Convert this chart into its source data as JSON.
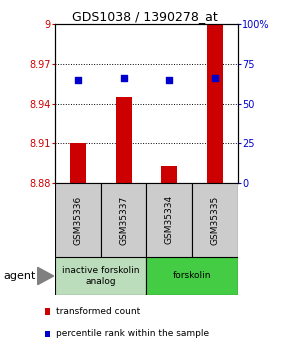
{
  "title": "GDS1038 / 1390278_at",
  "samples": [
    "GSM35336",
    "GSM35337",
    "GSM35334",
    "GSM35335"
  ],
  "bar_values": [
    8.91,
    8.945,
    8.893,
    9.0
  ],
  "bar_base": 8.88,
  "percentile_values": [
    65,
    66,
    65,
    66
  ],
  "percentile_scale_min": 0,
  "percentile_scale_max": 100,
  "y_min": 8.88,
  "y_max": 9.0,
  "y_ticks": [
    8.88,
    8.91,
    8.94,
    8.97,
    9.0
  ],
  "y_tick_labels": [
    "8.88",
    "8.91",
    "8.94",
    "8.97",
    "9"
  ],
  "right_y_ticks": [
    0,
    25,
    50,
    75,
    100
  ],
  "right_y_tick_labels": [
    "0",
    "25",
    "50",
    "75",
    "100%"
  ],
  "bar_color": "#cc0000",
  "dot_color": "#0000cc",
  "grid_color": "#000000",
  "bg_color": "#ffffff",
  "plot_bg": "#ffffff",
  "inactive_color": "#bbddbb",
  "active_color": "#44cc44",
  "sample_bg": "#cccccc",
  "groups": [
    {
      "label": "inactive forskolin\nanalog",
      "samples": [
        0,
        1
      ],
      "color": "#bbddbb"
    },
    {
      "label": "forskolin",
      "samples": [
        2,
        3
      ],
      "color": "#44cc44"
    }
  ],
  "legend_red": "transformed count",
  "legend_blue": "percentile rank within the sample",
  "agent_label": "agent",
  "bar_width": 0.35
}
